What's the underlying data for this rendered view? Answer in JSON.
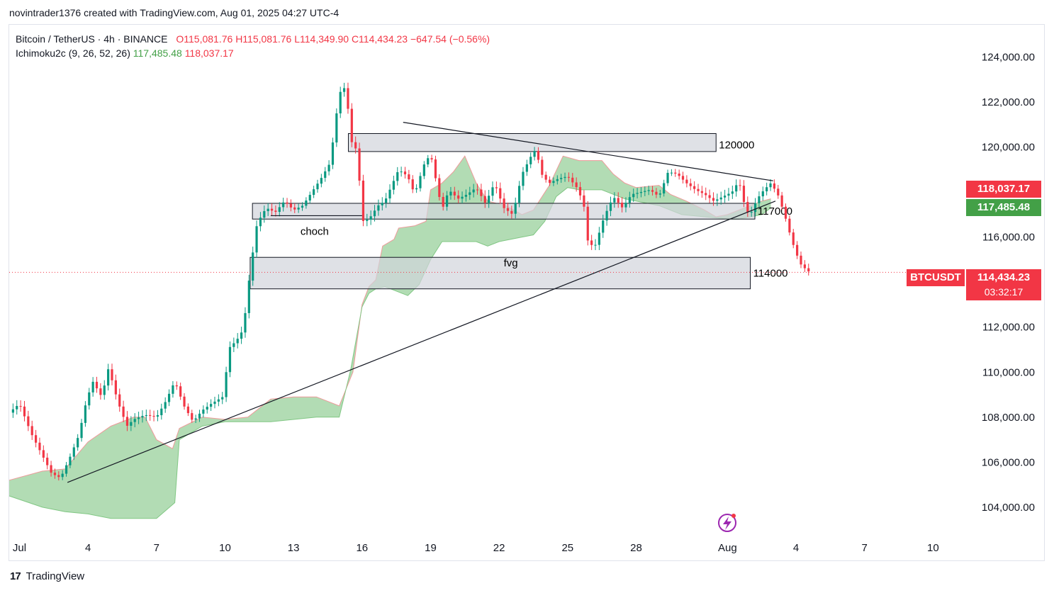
{
  "caption": "novintrader1376 created with TradingView.com, Aug 01, 2025 04:27 UTC-4",
  "legend": {
    "symbol": "Bitcoin / TetherUS · 4h · BINANCE",
    "open": "O115,081.76",
    "high": "H115,081.76",
    "low": "L114,349.90",
    "close": "C114,434.23",
    "change": "−647.54 (−0.56%)",
    "indicator": "Ichimoku2c (9, 26, 52, 26)",
    "ind_val1": "117,485.48",
    "ind_val2": "118,037.17"
  },
  "badges": {
    "red_value": "118,037.17",
    "green_value": "117,485.48",
    "ticker": "BTCUSDT",
    "price": "114,434.23",
    "countdown": "03:32:17"
  },
  "footer": {
    "logo": "17",
    "brand": "TradingView"
  },
  "colors": {
    "up": "#089981",
    "down": "#f23645",
    "cloud": "#a5d6a7",
    "cloud_edge": "#ef9a9a",
    "zone": "#d1d4dc"
  },
  "chart_data": {
    "type": "candlestick",
    "y_ticks": [
      124000,
      122000,
      120000,
      118000,
      116000,
      114000,
      112000,
      110000,
      108000,
      106000,
      104000
    ],
    "y_tick_labels": [
      "124,000.00",
      "122,000.00",
      "120,000.00",
      "118,000.00",
      "116,000.00",
      "114,000.00",
      "112,000.00",
      "110,000.00",
      "108,000.00",
      "106,000.00",
      "104,000.00"
    ],
    "ylim": [
      102800,
      125400
    ],
    "x_ticks": [
      "Jul",
      "4",
      "7",
      "10",
      "13",
      "16",
      "19",
      "22",
      "25",
      "28",
      "Aug",
      "4",
      "7",
      "10"
    ],
    "x_tick_days": [
      1,
      4,
      7,
      10,
      13,
      16,
      19,
      22,
      25,
      28,
      32,
      35,
      38,
      41
    ],
    "xlim": [
      0.55,
      42.2
    ],
    "last_price": 114434.23,
    "zones": [
      {
        "from_day": 15.4,
        "to_day": 31.5,
        "low": 119800,
        "high": 120600,
        "label": "120000"
      },
      {
        "from_day": 11.2,
        "to_day": 33.2,
        "low": 116800,
        "high": 117500,
        "label": "117000"
      },
      {
        "from_day": 11.1,
        "to_day": 33.0,
        "low": 113700,
        "high": 115100,
        "label": "114000"
      }
    ],
    "annotations": [
      {
        "text": "choch",
        "day": 13.3,
        "price": 116100
      },
      {
        "text": "fvg",
        "day": 22.2,
        "price": 114700
      }
    ],
    "trendlines": [
      {
        "from": [
          3.1,
          105100
        ],
        "to": [
          34.1,
          117600
        ]
      },
      {
        "from": [
          17.8,
          121100
        ],
        "to": [
          34.0,
          118500
        ]
      }
    ],
    "price_path": [
      [
        0.55,
        108200
      ],
      [
        1.0,
        108600
      ],
      [
        1.5,
        107300
      ],
      [
        2.0,
        106300
      ],
      [
        2.4,
        105500
      ],
      [
        2.8,
        105300
      ],
      [
        3.2,
        106200
      ],
      [
        3.6,
        107200
      ],
      [
        3.9,
        108600
      ],
      [
        4.2,
        109600
      ],
      [
        4.6,
        108900
      ],
      [
        4.9,
        110200
      ],
      [
        5.3,
        108700
      ],
      [
        5.7,
        107600
      ],
      [
        6.0,
        107900
      ],
      [
        6.5,
        108100
      ],
      [
        7.0,
        108000
      ],
      [
        7.4,
        108700
      ],
      [
        7.8,
        109600
      ],
      [
        8.2,
        108500
      ],
      [
        8.6,
        107800
      ],
      [
        9.0,
        108300
      ],
      [
        9.4,
        108600
      ],
      [
        9.9,
        108900
      ],
      [
        10.2,
        111100
      ],
      [
        10.5,
        111400
      ],
      [
        10.8,
        111900
      ],
      [
        11.1,
        114500
      ],
      [
        11.4,
        116600
      ],
      [
        11.8,
        117300
      ],
      [
        12.2,
        117100
      ],
      [
        12.6,
        117600
      ],
      [
        13.0,
        117200
      ],
      [
        13.4,
        117400
      ],
      [
        13.8,
        118000
      ],
      [
        14.2,
        118600
      ],
      [
        14.6,
        119300
      ],
      [
        15.0,
        122400
      ],
      [
        15.3,
        122700
      ],
      [
        15.5,
        120300
      ],
      [
        15.8,
        119800
      ],
      [
        16.0,
        116700
      ],
      [
        16.3,
        116800
      ],
      [
        16.7,
        117400
      ],
      [
        17.0,
        117600
      ],
      [
        17.3,
        118300
      ],
      [
        17.6,
        119000
      ],
      [
        18.0,
        118700
      ],
      [
        18.3,
        117900
      ],
      [
        18.7,
        119200
      ],
      [
        19.0,
        119700
      ],
      [
        19.3,
        118200
      ],
      [
        19.5,
        117200
      ],
      [
        19.8,
        118100
      ],
      [
        20.2,
        117700
      ],
      [
        20.6,
        117900
      ],
      [
        21.0,
        118200
      ],
      [
        21.4,
        117500
      ],
      [
        21.8,
        118400
      ],
      [
        22.2,
        117300
      ],
      [
        22.6,
        117000
      ],
      [
        23.0,
        118800
      ],
      [
        23.4,
        119600
      ],
      [
        23.6,
        119900
      ],
      [
        23.9,
        118700
      ],
      [
        24.2,
        118400
      ],
      [
        24.6,
        118600
      ],
      [
        25.0,
        118700
      ],
      [
        25.4,
        118200
      ],
      [
        25.7,
        117500
      ],
      [
        25.9,
        115700
      ],
      [
        26.2,
        115600
      ],
      [
        26.6,
        116900
      ],
      [
        27.0,
        117800
      ],
      [
        27.4,
        117300
      ],
      [
        27.8,
        117900
      ],
      [
        28.2,
        118000
      ],
      [
        28.6,
        118100
      ],
      [
        29.0,
        117800
      ],
      [
        29.4,
        118900
      ],
      [
        29.8,
        118800
      ],
      [
        30.2,
        118400
      ],
      [
        30.6,
        118100
      ],
      [
        31.0,
        117900
      ],
      [
        31.4,
        117600
      ],
      [
        31.8,
        117800
      ],
      [
        32.2,
        118000
      ],
      [
        32.5,
        118500
      ],
      [
        32.8,
        117200
      ],
      [
        33.0,
        117000
      ],
      [
        33.3,
        117700
      ],
      [
        33.6,
        118100
      ],
      [
        33.9,
        118400
      ],
      [
        34.2,
        117900
      ],
      [
        34.5,
        117000
      ],
      [
        34.8,
        115900
      ],
      [
        35.0,
        115300
      ],
      [
        35.2,
        114800
      ],
      [
        35.4,
        114600
      ],
      [
        35.6,
        114434
      ]
    ],
    "cloud_upper": [
      [
        0.55,
        105200
      ],
      [
        2.0,
        105600
      ],
      [
        3.0,
        105700
      ],
      [
        4.0,
        106900
      ],
      [
        5.0,
        107600
      ],
      [
        6.0,
        108000
      ],
      [
        6.5,
        108000
      ],
      [
        7.0,
        107000
      ],
      [
        7.7,
        106600
      ],
      [
        8.0,
        107500
      ],
      [
        9.0,
        108000
      ],
      [
        10.0,
        107900
      ],
      [
        11.0,
        108000
      ],
      [
        12.0,
        108800
      ],
      [
        13.0,
        108900
      ],
      [
        14.0,
        108900
      ],
      [
        15.0,
        108500
      ],
      [
        15.6,
        110000
      ],
      [
        16.0,
        113000
      ],
      [
        16.3,
        113800
      ],
      [
        16.6,
        114100
      ],
      [
        16.9,
        115600
      ],
      [
        17.4,
        115900
      ],
      [
        17.6,
        116400
      ],
      [
        18.3,
        116500
      ],
      [
        18.8,
        116700
      ],
      [
        19.0,
        118100
      ],
      [
        19.5,
        118400
      ],
      [
        20.0,
        118900
      ],
      [
        20.5,
        119600
      ],
      [
        21.0,
        118400
      ],
      [
        21.5,
        117600
      ],
      [
        22.3,
        117400
      ],
      [
        23.0,
        117000
      ],
      [
        23.5,
        117200
      ],
      [
        24.2,
        118300
      ],
      [
        24.8,
        119600
      ],
      [
        25.5,
        119400
      ],
      [
        26.5,
        119400
      ],
      [
        27.0,
        118800
      ],
      [
        27.5,
        118400
      ],
      [
        28.0,
        118200
      ],
      [
        29.0,
        118300
      ],
      [
        29.5,
        117900
      ],
      [
        30.2,
        117600
      ],
      [
        31.0,
        117200
      ],
      [
        31.5,
        116900
      ],
      [
        32.0,
        117000
      ],
      [
        32.5,
        117200
      ],
      [
        33.0,
        117400
      ],
      [
        33.5,
        117600
      ],
      [
        33.9,
        117700
      ]
    ],
    "cloud_lower": [
      [
        0.55,
        104500
      ],
      [
        2.0,
        104000
      ],
      [
        3.0,
        103800
      ],
      [
        4.0,
        103700
      ],
      [
        5.0,
        103500
      ],
      [
        6.0,
        103500
      ],
      [
        7.0,
        103500
      ],
      [
        7.8,
        104200
      ],
      [
        8.0,
        107000
      ],
      [
        9.0,
        107600
      ],
      [
        10.0,
        107800
      ],
      [
        11.0,
        107800
      ],
      [
        12.0,
        107800
      ],
      [
        13.0,
        107900
      ],
      [
        14.0,
        108000
      ],
      [
        15.0,
        108000
      ],
      [
        15.5,
        110100
      ],
      [
        16.0,
        112900
      ],
      [
        16.3,
        113500
      ],
      [
        16.6,
        113700
      ],
      [
        17.0,
        113800
      ],
      [
        18.0,
        113400
      ],
      [
        18.5,
        113900
      ],
      [
        19.0,
        115000
      ],
      [
        19.5,
        115800
      ],
      [
        20.0,
        115800
      ],
      [
        20.5,
        115800
      ],
      [
        21.0,
        115800
      ],
      [
        21.5,
        115600
      ],
      [
        22.0,
        115800
      ],
      [
        23.0,
        116000
      ],
      [
        23.5,
        116100
      ],
      [
        24.0,
        116700
      ],
      [
        24.5,
        117800
      ],
      [
        25.0,
        118200
      ],
      [
        25.5,
        118100
      ],
      [
        26.5,
        118100
      ],
      [
        27.0,
        117900
      ],
      [
        27.5,
        117700
      ],
      [
        28.5,
        117500
      ],
      [
        29.0,
        117400
      ],
      [
        30.0,
        117000
      ],
      [
        31.0,
        116900
      ],
      [
        32.0,
        116800
      ],
      [
        32.5,
        116800
      ],
      [
        33.0,
        116900
      ],
      [
        33.5,
        117000
      ],
      [
        33.9,
        117300
      ]
    ]
  }
}
